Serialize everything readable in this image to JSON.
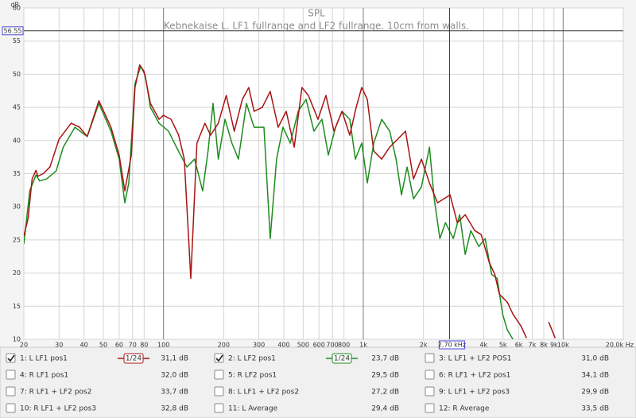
{
  "chart_data": {
    "type": "line",
    "title": "SPL",
    "subtitle": "Kebnekaise L. LF1 fullrange and LF2 fullrange. 10cm from walls.",
    "ylabel": "dB",
    "xscale": "log",
    "grid": true,
    "xlim": [
      20,
      20000
    ],
    "ylim": [
      10,
      60
    ],
    "yticks": [
      10,
      15,
      20,
      25,
      30,
      35,
      40,
      45,
      50,
      55,
      60
    ],
    "xticks": [
      20,
      30,
      40,
      50,
      60,
      70,
      80,
      100,
      200,
      300,
      400,
      500,
      600,
      700,
      800,
      {
        "value": 1000,
        "label": "1k"
      },
      {
        "value": 2000,
        "label": "2k"
      },
      {
        "value": 4000,
        "label": "4k"
      },
      {
        "value": 5000,
        "label": "5k"
      },
      {
        "value": 6000,
        "label": "6k"
      },
      {
        "value": 7000,
        "label": "7k"
      },
      {
        "value": 8000,
        "label": "8k"
      },
      {
        "value": 9000,
        "label": "9k"
      },
      {
        "value": 10000,
        "label": "10k"
      },
      {
        "value": 20000,
        "label": "20,0k Hz"
      }
    ],
    "cursor_y": 56.55,
    "cursor_x": {
      "value": 2700,
      "label": "2,70 kHz"
    },
    "series": [
      {
        "name": "1: L LF1 pos1",
        "color": "#a81414",
        "checked": true,
        "smoothing": "1/24",
        "level": "31,1 dB",
        "x": [
          20,
          21,
          22,
          23,
          23.5,
          25,
          27,
          30,
          34.5,
          38,
          41.5,
          47.5,
          54.6,
          60,
          64,
          69,
          72,
          76,
          80,
          86,
          95,
          100,
          109,
          119,
          127,
          137,
          147,
          161,
          172,
          188,
          206,
          226,
          248,
          267,
          284,
          312,
          342,
          375,
          411,
          451,
          493,
          531,
          593,
          650,
          713,
          782,
          856,
          921,
          982,
          1047,
          1127,
          1236,
          1355,
          1486,
          1626,
          1782,
          1954,
          2143,
          2350,
          2529,
          2718,
          2953,
          3237,
          3614,
          3890,
          4266,
          4550,
          4799,
          5260,
          5610,
          6152,
          6561,
          7500,
          8472,
          9120
        ],
        "values": [
          25.6,
          28.2,
          34.2,
          35.5,
          34.6,
          35,
          36,
          40.2,
          42.6,
          42,
          40.6,
          46,
          42,
          37.8,
          32.4,
          37.8,
          48,
          51.4,
          50.4,
          45.6,
          43.2,
          43.8,
          43.2,
          40.8,
          37.2,
          19.2,
          39.6,
          42.6,
          40.8,
          42.6,
          46.8,
          41.4,
          46.2,
          48,
          44.4,
          45,
          47.4,
          42,
          44.4,
          39,
          48,
          46.8,
          43.2,
          46.8,
          41.4,
          44.4,
          40.8,
          45,
          48,
          46.2,
          38.4,
          37.2,
          39,
          40.2,
          41.4,
          34.2,
          37.2,
          33.6,
          30.6,
          31.2,
          31.8,
          27.6,
          28.8,
          26.4,
          25.8,
          21.6,
          19.8,
          16.8,
          15.6,
          13.8,
          12,
          10.2,
          null,
          12.6,
          10.2
        ]
      },
      {
        "name": "2: L LF2 pos1",
        "color": "#1e8c1e",
        "checked": true,
        "smoothing": "1/24",
        "level": "23,7 dB",
        "x": [
          20,
          21.4,
          23,
          24,
          26,
          29,
          31.5,
          36,
          41.5,
          47.5,
          54.6,
          60,
          64,
          67,
          72,
          77,
          81,
          86,
          95,
          106,
          116,
          131,
          143,
          157,
          167,
          177,
          188,
          203,
          220,
          237,
          260,
          284,
          318,
          342,
          368,
          396,
          431,
          472,
          517,
          566,
          621,
          668,
          726,
          782,
          856,
          912,
          982,
          1047,
          1127,
          1236,
          1355,
          1458,
          1552,
          1656,
          1782,
          1954,
          2143,
          2265,
          2416,
          2576,
          2820,
          3036,
          3237,
          3452,
          3784,
          4074,
          4386,
          4677,
          4977,
          5260,
          5610
        ],
        "values": [
          24.4,
          32.4,
          34.8,
          33.9,
          34.2,
          35.4,
          39,
          42,
          40.6,
          45.6,
          41.4,
          37.2,
          30.6,
          33.6,
          48.6,
          51.2,
          49.8,
          45,
          42.6,
          41.4,
          39,
          36,
          37.2,
          32.4,
          38.4,
          45.6,
          37.2,
          43.2,
          39.6,
          37.2,
          45.6,
          42,
          42,
          25.2,
          37.2,
          42,
          39.6,
          44.4,
          46.2,
          41.4,
          43.2,
          37.8,
          42,
          44.4,
          43.2,
          37.2,
          39.6,
          33.6,
          39.6,
          43.2,
          41.4,
          37.2,
          31.8,
          36,
          31.2,
          33,
          39,
          31.2,
          25.2,
          27.6,
          25.2,
          28.8,
          22.8,
          26.4,
          24,
          25.2,
          19.8,
          19.2,
          13.8,
          11.4,
          10
        ]
      },
      {
        "name": "3: L LF1 + LF2 POS1",
        "color": "#4848c0",
        "checked": false,
        "level": "31,0 dB"
      },
      {
        "name": "4: R LF1 pos1",
        "color": "#c020c0",
        "checked": false,
        "level": "32,0 dB"
      },
      {
        "name": "5: R LF2 pos1",
        "color": "#2890a8",
        "checked": false,
        "level": "29,5 dB"
      },
      {
        "name": "6: R LF1 + LF2 pos1",
        "color": "#d09800",
        "checked": false,
        "level": "34,1 dB"
      },
      {
        "name": "7: R LF1 + LF2 pos2",
        "color": "#30b060",
        "checked": false,
        "level": "33,7 dB"
      },
      {
        "name": "8: L LF1 + LF2 pos2",
        "color": "#a040c0",
        "checked": false,
        "level": "27,2 dB"
      },
      {
        "name": "9: L LF1 + LF2 pos3",
        "color": "#c02890",
        "checked": false,
        "level": "29,9 dB"
      },
      {
        "name": "10: R LF1 + LF2 pos3",
        "color": "#2080c0",
        "checked": false,
        "level": "32,8 dB"
      },
      {
        "name": "11: L Average",
        "color": "#a81414",
        "checked": false,
        "level": "29,4 dB"
      },
      {
        "name": "12: R Average",
        "color": "#208a20",
        "checked": false,
        "level": "33,5 dB"
      }
    ]
  }
}
